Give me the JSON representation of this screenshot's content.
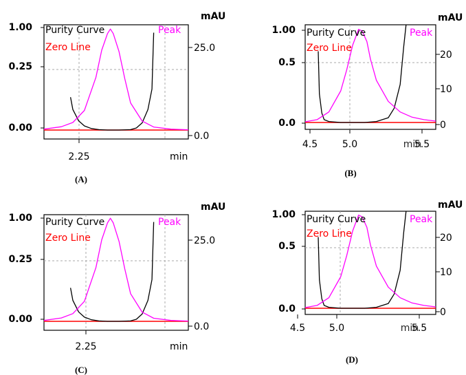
{
  "colors": {
    "purity_curve": "#000000",
    "zero_line": "#ff0000",
    "peak": "#ff00ff",
    "grid": "#aaaaaa"
  },
  "chart_data": [
    {
      "caption": "(A)",
      "type": "line",
      "left_axis": {
        "ticks": [
          "1.00",
          "0.25",
          "0.00"
        ]
      },
      "right_axis": {
        "label": "mAU",
        "ticks": [
          "25.0",
          "0.0"
        ],
        "ylim": [
          0,
          34
        ]
      },
      "x_axis": {
        "ticks": [
          "2.25"
        ],
        "unit": "min",
        "xlim": [
          2.15,
          2.4
        ]
      },
      "legend": {
        "purity": "Purity Curve",
        "zero": "Zero Line",
        "peak": "Peak"
      },
      "grid": true,
      "series": [
        {
          "name": "Purity Curve",
          "x": [
            2.196,
            2.2,
            2.21,
            2.22,
            2.232,
            2.245,
            2.26,
            2.28,
            2.3,
            2.31,
            2.32,
            2.33,
            2.337,
            2.34
          ],
          "y": [
            0.32,
            0.2,
            0.09,
            0.04,
            0.015,
            0.004,
            0.0,
            0.0,
            0.004,
            0.02,
            0.07,
            0.2,
            0.4,
            0.95
          ]
        },
        {
          "name": "Peak",
          "x": [
            2.15,
            2.18,
            2.2,
            2.22,
            2.24,
            2.25,
            2.26,
            2.265,
            2.27,
            2.28,
            2.29,
            2.3,
            2.32,
            2.34,
            2.37,
            2.4
          ],
          "y": [
            0.3,
            1.1,
            2.5,
            6.5,
            17.5,
            26.5,
            32.0,
            33.5,
            32.0,
            26.0,
            17.0,
            9.0,
            3.0,
            1.0,
            0.3,
            0.1
          ]
        }
      ]
    },
    {
      "caption": "(B)",
      "type": "line",
      "left_axis": {
        "ticks": [
          "1.00",
          "0.5",
          "0.0"
        ]
      },
      "right_axis": {
        "label": "mAU",
        "ticks": [
          "20",
          "10",
          "0"
        ],
        "ylim": [
          0,
          27
        ]
      },
      "x_axis": {
        "ticks": [
          "4.5",
          "5.0",
          "5.5"
        ],
        "unit": "min",
        "xlim": [
          4.5,
          5.6
        ]
      },
      "legend": {
        "purity": "Purity Curve",
        "zero": "Zero Line",
        "peak": "Peak"
      },
      "grid": true,
      "series": [
        {
          "name": "Purity Curve",
          "x": [
            4.61,
            4.62,
            4.64,
            4.66,
            4.7,
            4.8,
            4.9,
            5.0,
            5.1,
            5.2,
            5.25,
            5.3,
            5.33,
            5.35
          ],
          "y": [
            0.75,
            0.3,
            0.1,
            0.03,
            0.01,
            0.0,
            0.0,
            0.0,
            0.01,
            0.05,
            0.15,
            0.4,
            0.8,
            1.15
          ]
        },
        {
          "name": "Peak",
          "x": [
            4.5,
            4.6,
            4.7,
            4.8,
            4.85,
            4.9,
            4.95,
            4.98,
            5.02,
            5.05,
            5.1,
            5.2,
            5.3,
            5.4,
            5.5,
            5.6
          ],
          "y": [
            0.2,
            0.8,
            3.0,
            9.0,
            15.0,
            22.0,
            26.5,
            26.0,
            23.0,
            18.0,
            12.0,
            6.0,
            3.0,
            1.5,
            0.8,
            0.4
          ]
        }
      ]
    },
    {
      "caption": "(C)",
      "type": "line",
      "left_axis": {
        "ticks": [
          "1.00",
          "0.25",
          "0.00"
        ]
      },
      "right_axis": {
        "label": "mAU",
        "ticks": [
          "25.0",
          "0.0"
        ],
        "ylim": [
          0,
          34
        ]
      },
      "x_axis": {
        "ticks": [
          "2.25"
        ],
        "unit": "min",
        "xlim": [
          2.15,
          2.4
        ]
      },
      "legend": {
        "purity": "Purity Curve",
        "zero": "Zero Line",
        "peak": "Peak"
      },
      "grid": true,
      "series": [
        {
          "name": "Purity Curve",
          "x": [
            2.196,
            2.2,
            2.21,
            2.22,
            2.232,
            2.245,
            2.26,
            2.28,
            2.3,
            2.31,
            2.32,
            2.33,
            2.337,
            2.34
          ],
          "y": [
            0.32,
            0.2,
            0.09,
            0.04,
            0.015,
            0.004,
            0.0,
            0.0,
            0.004,
            0.02,
            0.07,
            0.2,
            0.4,
            0.95
          ]
        },
        {
          "name": "Peak",
          "x": [
            2.15,
            2.18,
            2.2,
            2.22,
            2.24,
            2.25,
            2.26,
            2.265,
            2.27,
            2.28,
            2.29,
            2.3,
            2.32,
            2.34,
            2.37,
            2.4
          ],
          "y": [
            0.3,
            1.1,
            2.5,
            6.5,
            17.5,
            26.5,
            32.0,
            33.5,
            32.0,
            26.0,
            17.0,
            9.0,
            3.0,
            1.0,
            0.3,
            0.1
          ]
        }
      ]
    },
    {
      "caption": "(D)",
      "type": "line",
      "left_axis": {
        "ticks": [
          "1.00",
          "0.5",
          "0.0"
        ]
      },
      "right_axis": {
        "label": "mAU",
        "ticks": [
          "20",
          "10",
          "0"
        ],
        "ylim": [
          0,
          27
        ]
      },
      "x_axis": {
        "ticks": [
          "4.5",
          "5.0",
          "5.5"
        ],
        "unit": "min",
        "xlim": [
          4.5,
          5.6
        ]
      },
      "legend": {
        "purity": "Purity Curve",
        "zero": "Zero Line",
        "peak": "Peak"
      },
      "grid": true,
      "series": [
        {
          "name": "Purity Curve",
          "x": [
            4.61,
            4.62,
            4.64,
            4.66,
            4.7,
            4.8,
            4.9,
            5.0,
            5.1,
            5.2,
            5.25,
            5.3,
            5.33,
            5.35
          ],
          "y": [
            0.75,
            0.3,
            0.1,
            0.03,
            0.01,
            0.0,
            0.0,
            0.0,
            0.01,
            0.05,
            0.15,
            0.4,
            0.8,
            1.15
          ]
        },
        {
          "name": "Peak",
          "x": [
            4.5,
            4.6,
            4.7,
            4.8,
            4.85,
            4.9,
            4.95,
            4.98,
            5.02,
            5.05,
            5.1,
            5.2,
            5.3,
            5.4,
            5.5,
            5.6
          ],
          "y": [
            0.2,
            0.8,
            3.0,
            9.0,
            15.0,
            22.0,
            26.5,
            26.0,
            23.0,
            18.0,
            12.0,
            6.0,
            3.0,
            1.5,
            0.8,
            0.4
          ]
        }
      ]
    }
  ]
}
